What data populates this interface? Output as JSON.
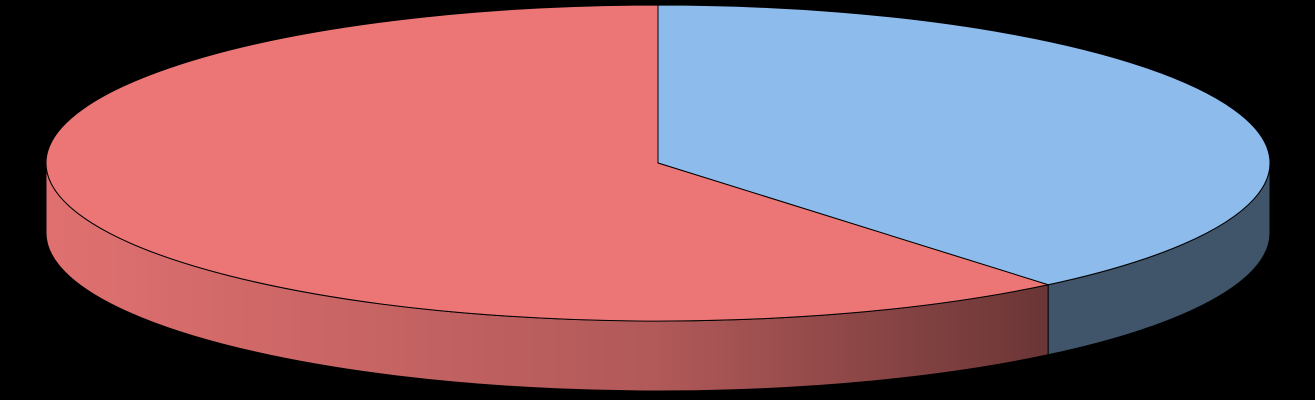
{
  "chart_data": {
    "type": "pie",
    "categories": [
      null,
      null
    ],
    "values": [
      39,
      61
    ],
    "colors": [
      "#8dbbeb",
      "#ec7676"
    ]
  }
}
